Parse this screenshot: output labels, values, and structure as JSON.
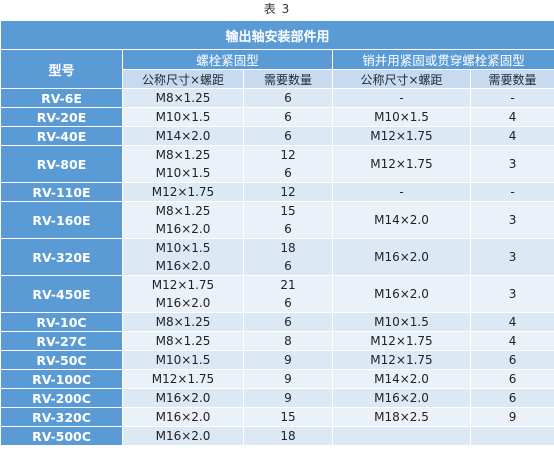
{
  "caption": "表 3",
  "title": "输出轴安装部件用",
  "headers": {
    "model": "型号",
    "group1": "螺栓紧固型",
    "group2": "销并用紧固或贯穿螺栓紧固型",
    "size": "公称尺寸×螺距",
    "qty": "需要数量",
    "size2": "公称尺寸×螺距",
    "qty2": "需要数量"
  },
  "rows": [
    {
      "model": "RV-6E",
      "sizes": [
        "M8×1.25"
      ],
      "qtys": [
        "6"
      ],
      "size2": "-",
      "qty2": "-"
    },
    {
      "model": "RV-20E",
      "sizes": [
        "M10×1.5"
      ],
      "qtys": [
        "6"
      ],
      "size2": "M10×1.5",
      "qty2": "4"
    },
    {
      "model": "RV-40E",
      "sizes": [
        "M14×2.0"
      ],
      "qtys": [
        "6"
      ],
      "size2": "M12×1.75",
      "qty2": "4"
    },
    {
      "model": "RV-80E",
      "sizes": [
        "M8×1.25",
        "M10×1.5"
      ],
      "qtys": [
        "12",
        "6"
      ],
      "size2": "M12×1.75",
      "qty2": "3"
    },
    {
      "model": "RV-110E",
      "sizes": [
        "M12×1.75"
      ],
      "qtys": [
        "12"
      ],
      "size2": "-",
      "qty2": "-"
    },
    {
      "model": "RV-160E",
      "sizes": [
        "M8×1.25",
        "M16×2.0"
      ],
      "qtys": [
        "15",
        "6"
      ],
      "size2": "M14×2.0",
      "qty2": "3"
    },
    {
      "model": "RV-320E",
      "sizes": [
        "M10×1.5",
        "M16×2.0"
      ],
      "qtys": [
        "18",
        "6"
      ],
      "size2": "M16×2.0",
      "qty2": "3"
    },
    {
      "model": "RV-450E",
      "sizes": [
        "M12×1.75",
        "M16×2.0"
      ],
      "qtys": [
        "21",
        "6"
      ],
      "size2": "M16×2.0",
      "qty2": "3"
    },
    {
      "model": "RV-10C",
      "sizes": [
        "M8×1.25"
      ],
      "qtys": [
        "6"
      ],
      "size2": "M10×1.5",
      "qty2": "4"
    },
    {
      "model": "RV-27C",
      "sizes": [
        "M8×1.25"
      ],
      "qtys": [
        "8"
      ],
      "size2": "M12×1.75",
      "qty2": "4"
    },
    {
      "model": "RV-50C",
      "sizes": [
        "M10×1.5"
      ],
      "qtys": [
        "9"
      ],
      "size2": "M12×1.75",
      "qty2": "6"
    },
    {
      "model": "RV-100C",
      "sizes": [
        "M12×1.75"
      ],
      "qtys": [
        "9"
      ],
      "size2": "M14×2.0",
      "qty2": "6"
    },
    {
      "model": "RV-200C",
      "sizes": [
        "M16×2.0"
      ],
      "qtys": [
        "9"
      ],
      "size2": "M16×2.0",
      "qty2": "6"
    },
    {
      "model": "RV-320C",
      "sizes": [
        "M16×2.0"
      ],
      "qtys": [
        "15"
      ],
      "size2": "M18×2.5",
      "qty2": "9"
    },
    {
      "model": "RV-500C",
      "sizes": [
        "M16×2.0"
      ],
      "qtys": [
        "18"
      ],
      "size2": "",
      "qty2": ""
    }
  ]
}
